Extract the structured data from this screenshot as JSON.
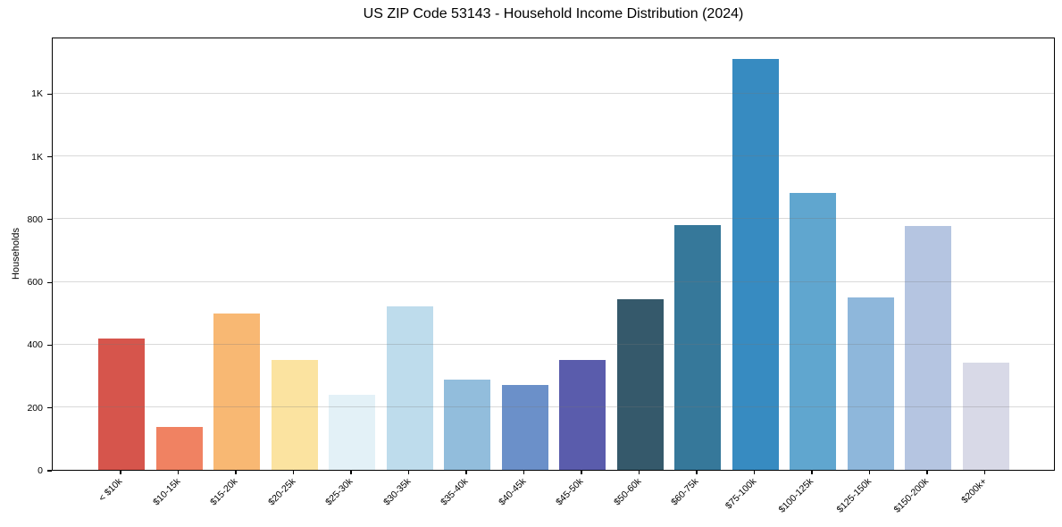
{
  "figure": {
    "title": "US ZIP Code 53143 - Household Income Distribution (2024)",
    "ylabel": "Households"
  },
  "chart_data": {
    "type": "bar",
    "title": "US ZIP Code 53143 - Household Income Distribution (2024)",
    "xlabel": "",
    "ylabel": "Households",
    "categories": [
      "< $10k",
      "$10-15k",
      "$15-20k",
      "$20-25k",
      "$25-30k",
      "$30-35k",
      "$35-40k",
      "$40-45k",
      "$45-50k",
      "$50-60k",
      "$60-75k",
      "$75-100k",
      "$100-125k",
      "$125-150k",
      "$150-200k",
      "$200k+"
    ],
    "values": [
      418,
      138,
      498,
      349,
      238,
      520,
      288,
      271,
      351,
      545,
      779,
      1310,
      883,
      548,
      776,
      343
    ],
    "bar_colors": [
      "#d6554c",
      "#f08262",
      "#f8b873",
      "#fbe3a0",
      "#e3f1f7",
      "#bedcec",
      "#92bddc",
      "#6b90c9",
      "#5a5cac",
      "#35596b",
      "#36789a",
      "#378bc1",
      "#60a6cf",
      "#8eb7db",
      "#b5c5e1",
      "#d8d9e7"
    ],
    "ylim": [
      0,
      1380
    ],
    "yticks": {
      "values": [
        0,
        200,
        400,
        600,
        800,
        1000,
        1200
      ],
      "labels": [
        "0",
        "200",
        "400",
        "600",
        "800",
        "1K",
        "1K"
      ]
    },
    "grid": "horizontal gridlines, light gray, drawn with low alpha over bars",
    "legend_position": "none",
    "spine_color": "#000000",
    "background_color": "#ffffff",
    "text_color": "#000000"
  }
}
